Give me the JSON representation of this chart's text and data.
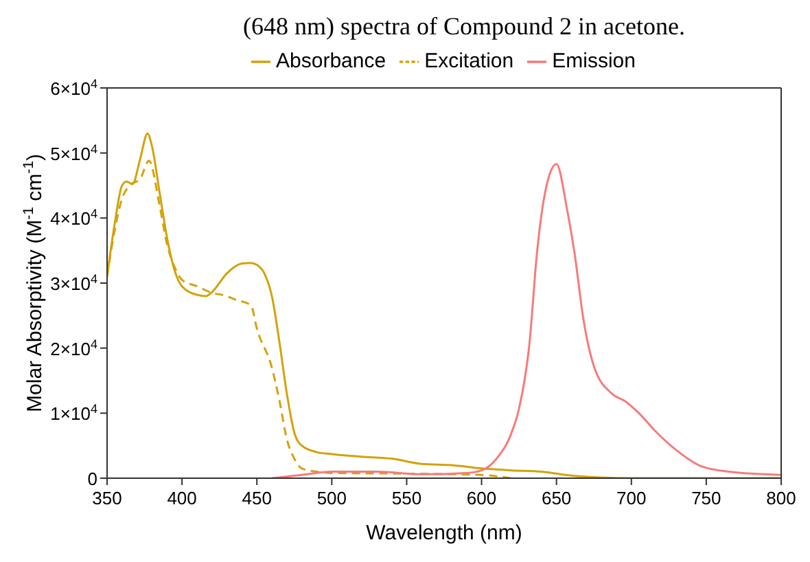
{
  "chart_data": {
    "type": "line",
    "title": "(648 nm) spectra of Compound 2 in acetone.",
    "xlabel": "Wavelength (nm)",
    "ylabel": "Molar Absorptivity (M$^{-1}$ cm$^{-1}$)",
    "xlim": [
      350,
      800
    ],
    "xticks": [
      350,
      400,
      450,
      500,
      550,
      600,
      650,
      700,
      750,
      800
    ],
    "ylim": [
      0,
      60000
    ],
    "yticks": [
      0,
      {
        "value": 10000,
        "label": "1×10$^{4}$"
      },
      {
        "value": 20000,
        "label": "2×10$^{4}$"
      },
      {
        "value": 30000,
        "label": "3×10$^{4}$"
      },
      {
        "value": 40000,
        "label": "4×10$^{4}$"
      },
      {
        "value": 50000,
        "label": "5×10$^{4}$"
      },
      {
        "value": 60000,
        "label": "6×10$^{4}$"
      }
    ],
    "legend": "top",
    "marker": "none",
    "series": [
      {
        "name": "Absorbance",
        "color": "#d4a20a",
        "line_style": "solid",
        "x": [
          350,
          355,
          360,
          363,
          367,
          372,
          377,
          380,
          385,
          390,
          395,
          400,
          410,
          416,
          420,
          430,
          440,
          446,
          450,
          455,
          460,
          465,
          470,
          475,
          480,
          490,
          500,
          520,
          540,
          560,
          580,
          600,
          620,
          640,
          660,
          680,
          700,
          800
        ],
        "values": [
          31000,
          39000,
          45000,
          45600,
          45200,
          49000,
          53000,
          51000,
          44000,
          37000,
          32000,
          29500,
          28200,
          28000,
          28600,
          31500,
          33000,
          33100,
          32800,
          31500,
          28000,
          21000,
          13000,
          7000,
          5000,
          4000,
          3700,
          3300,
          3000,
          2200,
          2000,
          1500,
          1200,
          1000,
          400,
          100,
          0,
          0
        ]
      },
      {
        "name": "Excitation",
        "color": "#d4a20a",
        "line_style": "dashed",
        "x": [
          350,
          355,
          360,
          365,
          372,
          378,
          385,
          390,
          395,
          400,
          410,
          420,
          430,
          435,
          446,
          450,
          460,
          465,
          470,
          475,
          480,
          490,
          500,
          550,
          600,
          620
        ],
        "values": [
          31000,
          38000,
          43000,
          45000,
          46000,
          48800,
          42000,
          36000,
          32500,
          30500,
          29500,
          28500,
          28000,
          27500,
          26600,
          23000,
          17000,
          12000,
          6000,
          3000,
          1500,
          1000,
          800,
          700,
          500,
          0
        ]
      },
      {
        "name": "Emission",
        "color": "#f87a7a",
        "line_style": "solid",
        "x": [
          460,
          480,
          500,
          530,
          560,
          590,
          600,
          610,
          620,
          625,
          632,
          637,
          644,
          650,
          657,
          662,
          668,
          675,
          687,
          696,
          705,
          717,
          729,
          747,
          765,
          800
        ],
        "values": [
          0,
          500,
          1000,
          1000,
          600,
          800,
          1200,
          3000,
          7000,
          10700,
          20800,
          34700,
          45600,
          48300,
          41400,
          34700,
          24400,
          17200,
          13000,
          11800,
          10000,
          7000,
          4500,
          1800,
          1000,
          500
        ]
      }
    ]
  }
}
